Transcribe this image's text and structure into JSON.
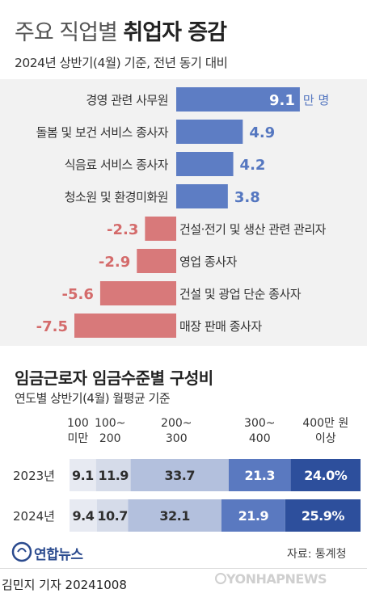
{
  "title_normal": "주요 직업별",
  "title_bold": "취업자 증감",
  "subtitle1": "2024년 상반기(4월) 기준, 전년 동기 대비",
  "subtitle2": "임금근로자 임금수준별 구성비",
  "subtitle3": "연도별 상반기(4월) 월평균 기준",
  "source": "자료: 통계청",
  "logo_text": "연합뉴스",
  "byline": "김민지 기자  20241008",
  "watermark": "YONHAPNEWS",
  "colors": {
    "positive": "#5d7dc4",
    "negative": "#d8797a",
    "positive_text": "#5577c0",
    "negative_text": "#d46b6b"
  },
  "chart_data": [
    {
      "type": "bar",
      "orientation": "horizontal",
      "unit": "만 명",
      "categories": [
        "경영 관련 사무원",
        "돌봄 및 보건 서비스 종사자",
        "식음료 서비스 종사자",
        "청소원 및 환경미화원",
        "건설·전기 및 생산 관련 관리자",
        "영업 종사자",
        "건설 및 광업 단순 종사자",
        "매장 판매 종사자"
      ],
      "values": [
        9.1,
        4.9,
        4.2,
        3.8,
        -2.3,
        -2.9,
        -5.6,
        -7.5
      ],
      "value_labels": [
        "9.1",
        "4.9",
        "4.2",
        "3.8",
        "-2.3",
        "-2.9",
        "-5.6",
        "-7.5"
      ],
      "first_value_unit": "만 명"
    },
    {
      "type": "bar",
      "orientation": "horizontal",
      "stacked": true,
      "categories": [
        "2023년",
        "2024년"
      ],
      "column_headers": [
        {
          "line1": "100",
          "line2": "미만"
        },
        {
          "line1": "100~",
          "line2": "200"
        },
        {
          "line1": "200~",
          "line2": "300"
        },
        {
          "line1": "300~",
          "line2": "400"
        },
        {
          "line1": "400만 원",
          "line2": "이상"
        }
      ],
      "series": [
        {
          "values": [
            9.1,
            9.4
          ],
          "color": "#e7eaf2"
        },
        {
          "values": [
            11.9,
            10.7
          ],
          "color": "#d5dbe9"
        },
        {
          "values": [
            33.7,
            32.1
          ],
          "color": "#b3c0dd"
        },
        {
          "values": [
            21.3,
            21.9
          ],
          "color": "#5a79c0"
        },
        {
          "values": [
            24.0,
            25.9
          ],
          "color": "#2d4f9c"
        }
      ],
      "value_labels": [
        [
          "9.1",
          "11.9",
          "33.7",
          "21.3",
          "24.0%"
        ],
        [
          "9.4",
          "10.7",
          "32.1",
          "21.9",
          "25.9%"
        ]
      ]
    }
  ]
}
